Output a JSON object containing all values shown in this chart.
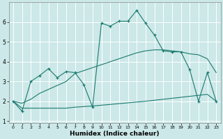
{
  "xlabel": "Humidex (Indice chaleur)",
  "bg_color": "#cce8e8",
  "line_color": "#1a7a6e",
  "xlim": [
    -0.5,
    23.5
  ],
  "ylim": [
    0.9,
    7.0
  ],
  "xticks": [
    0,
    1,
    2,
    3,
    4,
    5,
    6,
    7,
    8,
    9,
    10,
    11,
    12,
    13,
    14,
    15,
    16,
    17,
    18,
    19,
    20,
    21,
    22,
    23
  ],
  "yticks": [
    1,
    2,
    3,
    4,
    5,
    6
  ],
  "line1_x": [
    0,
    1,
    2,
    3,
    4,
    5,
    6,
    7,
    8,
    9,
    10,
    11,
    12,
    13,
    14,
    15,
    16,
    17,
    18,
    19,
    20,
    21,
    22,
    23
  ],
  "line1_y": [
    2.0,
    1.5,
    3.0,
    3.3,
    3.65,
    3.2,
    3.5,
    3.45,
    2.85,
    1.7,
    5.95,
    5.8,
    6.05,
    6.05,
    6.6,
    5.95,
    5.35,
    4.55,
    4.5,
    4.5,
    3.6,
    2.0,
    3.45,
    2.0
  ],
  "line2_x": [
    0,
    1,
    2,
    3,
    4,
    5,
    6,
    7,
    8,
    9,
    10,
    11,
    12,
    13,
    14,
    15,
    16,
    17,
    18,
    19,
    20,
    21,
    22,
    23
  ],
  "line2_y": [
    2.0,
    1.65,
    1.65,
    1.65,
    1.65,
    1.65,
    1.65,
    1.7,
    1.73,
    1.76,
    1.8,
    1.84,
    1.88,
    1.92,
    1.96,
    2.0,
    2.05,
    2.1,
    2.15,
    2.2,
    2.25,
    2.3,
    2.35,
    2.0
  ],
  "line3_x": [
    0,
    1,
    2,
    3,
    4,
    5,
    6,
    7,
    8,
    9,
    10,
    11,
    12,
    13,
    14,
    15,
    16,
    17,
    18,
    19,
    20,
    21,
    22,
    23
  ],
  "line3_y": [
    2.0,
    1.9,
    2.1,
    2.4,
    2.6,
    2.8,
    3.0,
    3.4,
    3.55,
    3.7,
    3.85,
    4.0,
    4.15,
    4.3,
    4.45,
    4.55,
    4.6,
    4.6,
    4.55,
    4.5,
    4.4,
    4.35,
    4.15,
    3.45
  ]
}
